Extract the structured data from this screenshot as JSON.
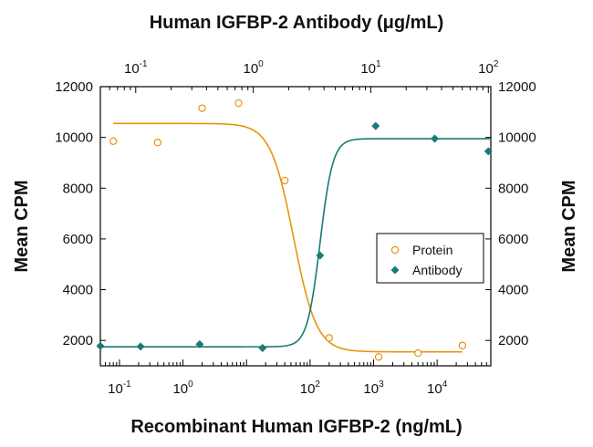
{
  "chart_data": {
    "type": "scatter",
    "title": "Human IGFBP-2 Antibody (μg/mL)",
    "xlabel": "Recombinant Human IGFBP-2 (ng/mL)",
    "ylabel_left": "Mean CPM",
    "ylabel_right": "Mean CPM",
    "x_scale": "log",
    "xlim": [
      0.05,
      70000
    ],
    "ylim": [
      1000,
      12000
    ],
    "y_ticks": [
      2000,
      4000,
      6000,
      8000,
      10000,
      12000
    ],
    "y_tick_labels": [
      "2000",
      "4000",
      "6000",
      "8000",
      "10000",
      "12000"
    ],
    "bottom_axis_ticks": [
      {
        "value": 0.1,
        "base": "10",
        "exp": "-1"
      },
      {
        "value": 1,
        "base": "10",
        "exp": "0"
      },
      {
        "value": 100,
        "base": "10",
        "exp": "2"
      },
      {
        "value": 1000,
        "base": "10",
        "exp": "3"
      },
      {
        "value": 10000,
        "base": "10",
        "exp": "4"
      }
    ],
    "top_axis": {
      "label": "Human IGFBP-2 Antibody (μg/mL)",
      "xlim": [
        0.05,
        105
      ],
      "ticks": [
        {
          "value": 0.1,
          "base": "10",
          "exp": "-1"
        },
        {
          "value": 1,
          "base": "10",
          "exp": "0"
        },
        {
          "value": 10,
          "base": "10",
          "exp": "1"
        },
        {
          "value": 100,
          "base": "10",
          "exp": "2"
        }
      ]
    },
    "legend": {
      "placement": "right",
      "entries": [
        "Protein",
        "Antibody"
      ]
    },
    "series": [
      {
        "name": "Protein",
        "axis": "bottom",
        "marker": "open-circle",
        "color": "#E8940C",
        "x": [
          0.08,
          0.4,
          2,
          7.5,
          40,
          200,
          1200,
          5000,
          25000
        ],
        "y": [
          9850,
          9800,
          11150,
          11350,
          8300,
          2100,
          1350,
          1500,
          1800
        ],
        "fit": {
          "top": 10550,
          "bottom": 1550,
          "ec50": 55,
          "hill": 2.4
        }
      },
      {
        "name": "Antibody",
        "axis": "top",
        "marker": "filled-diamond",
        "color": "#1A7A74",
        "x": [
          0.05,
          0.11,
          0.35,
          1.2,
          3.7,
          11,
          35,
          100
        ],
        "y": [
          1780,
          1760,
          1850,
          1700,
          5350,
          10450,
          9950,
          9450
        ],
        "fit": {
          "top": 9950,
          "bottom": 1750,
          "ec50": 3.7,
          "hill": 8
        }
      }
    ]
  }
}
